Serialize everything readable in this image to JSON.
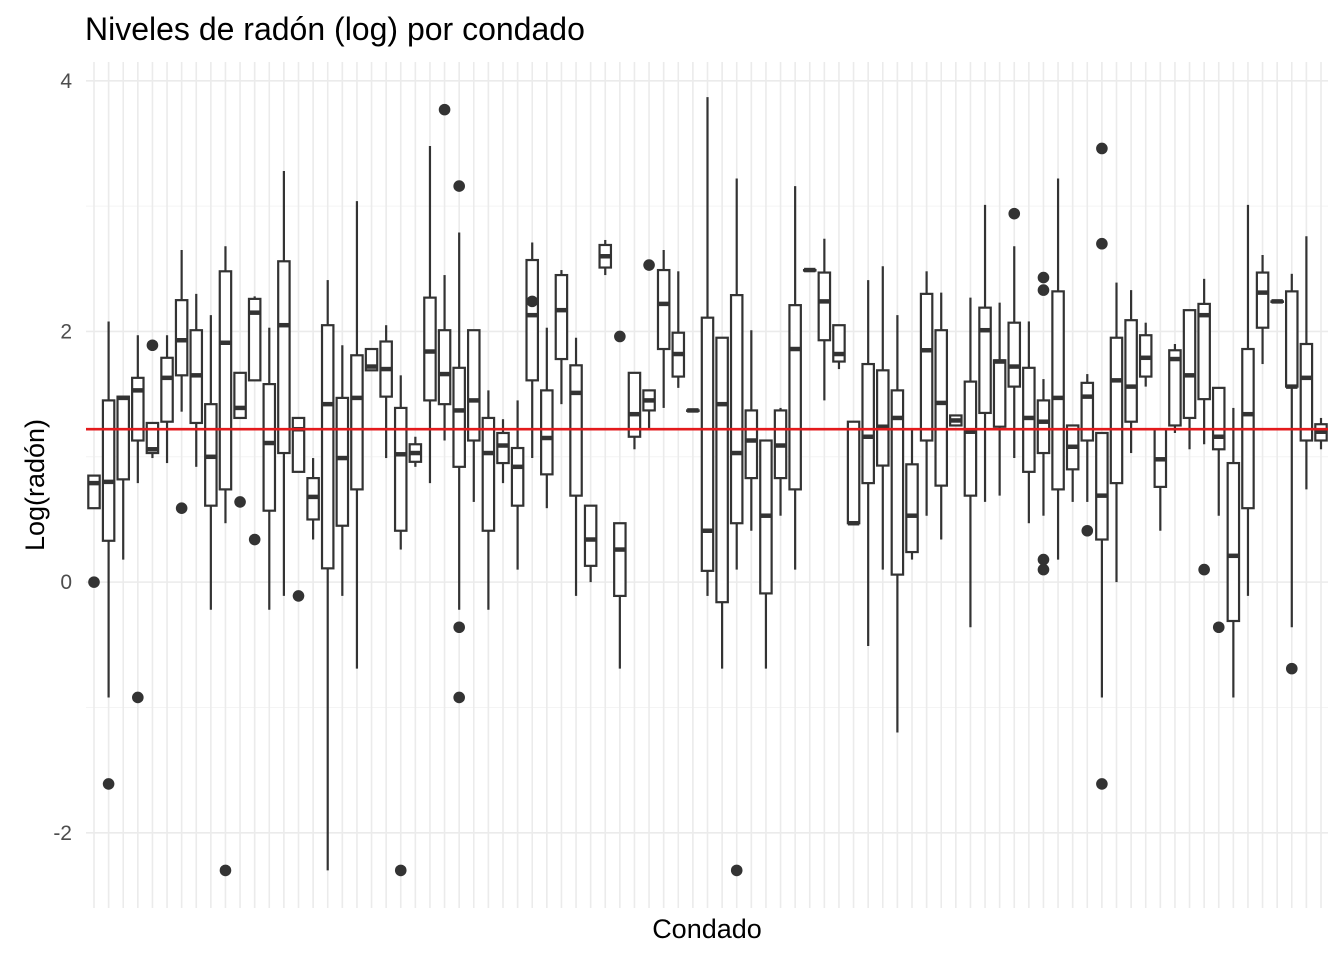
{
  "chart_data": {
    "type": "boxplot",
    "title": "Niveles de radón (log) por condado",
    "xlabel": "Condado",
    "ylabel": "Log(radón)",
    "ylim": [
      -2.6,
      4.15
    ],
    "yticks": [
      -2,
      0,
      2,
      4
    ],
    "grid": true,
    "reference_line": {
      "value": 1.22,
      "color": "#e31a1c"
    },
    "colors": {
      "box": "#333333",
      "grid_major": "#ebebeb",
      "grid_minor": "#f4f4f4",
      "reference": "#e31a1c"
    },
    "series": [
      {
        "q1": 0.59,
        "median": 0.79,
        "q3": 0.85,
        "lo": 0.59,
        "hi": 0.85,
        "out": [
          0.0
        ]
      },
      {
        "q1": 0.33,
        "median": 0.8,
        "q3": 1.45,
        "lo": -0.92,
        "hi": 2.08,
        "out": [
          -1.61
        ]
      },
      {
        "q1": 0.82,
        "median": 1.47,
        "q3": 1.48,
        "lo": 0.18,
        "hi": 1.48,
        "out": []
      },
      {
        "q1": 1.13,
        "median": 1.53,
        "q3": 1.63,
        "lo": 0.79,
        "hi": 1.97,
        "out": [
          -0.92
        ]
      },
      {
        "q1": 1.03,
        "median": 1.06,
        "q3": 1.27,
        "lo": 0.99,
        "hi": 1.27,
        "out": [
          1.89
        ]
      },
      {
        "q1": 1.28,
        "median": 1.63,
        "q3": 1.79,
        "lo": 0.95,
        "hi": 1.97,
        "out": []
      },
      {
        "q1": 1.65,
        "median": 1.93,
        "q3": 2.25,
        "lo": 1.36,
        "hi": 2.65,
        "out": [
          0.59
        ]
      },
      {
        "q1": 1.27,
        "median": 1.65,
        "q3": 2.01,
        "lo": 0.92,
        "hi": 2.3,
        "out": []
      },
      {
        "q1": 0.61,
        "median": 1.0,
        "q3": 1.42,
        "lo": -0.22,
        "hi": 2.13,
        "out": []
      },
      {
        "q1": 0.74,
        "median": 1.91,
        "q3": 2.48,
        "lo": 0.47,
        "hi": 2.68,
        "out": [
          -2.3
        ]
      },
      {
        "q1": 1.31,
        "median": 1.39,
        "q3": 1.67,
        "lo": 1.31,
        "hi": 1.67,
        "out": [
          0.64
        ]
      },
      {
        "q1": 1.61,
        "median": 2.15,
        "q3": 2.26,
        "lo": 1.61,
        "hi": 2.28,
        "out": [
          0.34
        ]
      },
      {
        "q1": 0.57,
        "median": 1.11,
        "q3": 1.58,
        "lo": -0.22,
        "hi": 2.03,
        "out": []
      },
      {
        "q1": 1.03,
        "median": 2.05,
        "q3": 2.56,
        "lo": -0.11,
        "hi": 3.28,
        "out": []
      },
      {
        "q1": 0.88,
        "median": 1.22,
        "q3": 1.31,
        "lo": 0.88,
        "hi": 1.31,
        "out": [
          -0.11
        ]
      },
      {
        "q1": 0.5,
        "median": 0.68,
        "q3": 0.83,
        "lo": 0.34,
        "hi": 0.99,
        "out": []
      },
      {
        "q1": 0.11,
        "median": 1.42,
        "q3": 2.05,
        "lo": -2.3,
        "hi": 2.41,
        "out": []
      },
      {
        "q1": 0.45,
        "median": 0.99,
        "q3": 1.47,
        "lo": -0.11,
        "hi": 1.89,
        "out": []
      },
      {
        "q1": 0.74,
        "median": 1.47,
        "q3": 1.81,
        "lo": -0.69,
        "hi": 3.04,
        "out": []
      },
      {
        "q1": 1.69,
        "median": 1.72,
        "q3": 1.86,
        "lo": 1.69,
        "hi": 1.86,
        "out": []
      },
      {
        "q1": 1.48,
        "median": 1.7,
        "q3": 1.92,
        "lo": 0.99,
        "hi": 2.05,
        "out": []
      },
      {
        "q1": 0.41,
        "median": 1.02,
        "q3": 1.39,
        "lo": 0.26,
        "hi": 1.65,
        "out": [
          -2.3
        ]
      },
      {
        "q1": 0.96,
        "median": 1.03,
        "q3": 1.1,
        "lo": 0.92,
        "hi": 1.16,
        "out": []
      },
      {
        "q1": 1.45,
        "median": 1.84,
        "q3": 2.27,
        "lo": 0.79,
        "hi": 3.48,
        "out": []
      },
      {
        "q1": 1.42,
        "median": 1.66,
        "q3": 2.01,
        "lo": 1.13,
        "hi": 2.45,
        "out": [
          3.77
        ]
      },
      {
        "q1": 0.92,
        "median": 1.37,
        "q3": 1.71,
        "lo": -0.22,
        "hi": 2.79,
        "out": [
          3.16,
          -0.36,
          -0.92
        ]
      },
      {
        "q1": 1.13,
        "median": 1.45,
        "q3": 2.01,
        "lo": 0.64,
        "hi": 2.01,
        "out": []
      },
      {
        "q1": 0.41,
        "median": 1.03,
        "q3": 1.31,
        "lo": -0.22,
        "hi": 1.53,
        "out": []
      },
      {
        "q1": 0.95,
        "median": 1.09,
        "q3": 1.19,
        "lo": 0.79,
        "hi": 1.3,
        "out": []
      },
      {
        "q1": 0.61,
        "median": 0.92,
        "q3": 1.07,
        "lo": 0.1,
        "hi": 1.45,
        "out": []
      },
      {
        "q1": 1.61,
        "median": 2.13,
        "q3": 2.57,
        "lo": 0.99,
        "hi": 2.71,
        "out": [
          2.24
        ]
      },
      {
        "q1": 0.86,
        "median": 1.15,
        "q3": 1.53,
        "lo": 0.59,
        "hi": 2.03,
        "out": []
      },
      {
        "q1": 1.78,
        "median": 2.17,
        "q3": 2.45,
        "lo": 1.42,
        "hi": 2.49,
        "out": []
      },
      {
        "q1": 0.69,
        "median": 1.51,
        "q3": 1.73,
        "lo": -0.11,
        "hi": 1.95,
        "out": []
      },
      {
        "q1": 0.13,
        "median": 0.34,
        "q3": 0.61,
        "lo": 0.0,
        "hi": 0.61,
        "out": []
      },
      {
        "q1": 2.51,
        "median": 2.6,
        "q3": 2.69,
        "lo": 2.45,
        "hi": 2.73,
        "out": []
      },
      {
        "q1": -0.11,
        "median": 0.26,
        "q3": 0.47,
        "lo": -0.69,
        "hi": 0.47,
        "out": [
          1.96
        ]
      },
      {
        "q1": 1.16,
        "median": 1.34,
        "q3": 1.67,
        "lo": 1.06,
        "hi": 1.67,
        "out": []
      },
      {
        "q1": 1.37,
        "median": 1.45,
        "q3": 1.53,
        "lo": 1.22,
        "hi": 1.53,
        "out": [
          2.53
        ]
      },
      {
        "q1": 1.86,
        "median": 2.22,
        "q3": 2.49,
        "lo": 1.39,
        "hi": 2.65,
        "out": []
      },
      {
        "q1": 1.64,
        "median": 1.82,
        "q3": 1.99,
        "lo": 1.55,
        "hi": 2.48,
        "out": []
      },
      {
        "q1": 1.37,
        "median": 1.37,
        "q3": 1.37,
        "lo": 1.37,
        "hi": 1.37,
        "out": []
      },
      {
        "q1": 0.09,
        "median": 0.41,
        "q3": 2.11,
        "lo": -0.11,
        "hi": 3.87,
        "out": []
      },
      {
        "q1": -0.16,
        "median": 1.42,
        "q3": 1.95,
        "lo": -0.69,
        "hi": 1.95,
        "out": []
      },
      {
        "q1": 0.47,
        "median": 1.03,
        "q3": 2.29,
        "lo": 0.1,
        "hi": 3.22,
        "out": [
          -2.3
        ]
      },
      {
        "q1": 0.83,
        "median": 1.13,
        "q3": 1.37,
        "lo": 0.41,
        "hi": 2.01,
        "out": []
      },
      {
        "q1": -0.09,
        "median": 0.53,
        "q3": 1.13,
        "lo": -0.69,
        "hi": 1.13,
        "out": []
      },
      {
        "q1": 0.83,
        "median": 1.09,
        "q3": 1.37,
        "lo": 0.53,
        "hi": 1.39,
        "out": []
      },
      {
        "q1": 0.74,
        "median": 1.86,
        "q3": 2.21,
        "lo": 0.1,
        "hi": 3.16,
        "out": []
      },
      {
        "q1": 2.49,
        "median": 2.49,
        "q3": 2.49,
        "lo": 2.49,
        "hi": 2.49,
        "out": []
      },
      {
        "q1": 1.93,
        "median": 2.24,
        "q3": 2.47,
        "lo": 1.45,
        "hi": 2.74,
        "out": []
      },
      {
        "q1": 1.76,
        "median": 1.82,
        "q3": 2.05,
        "lo": 1.7,
        "hi": 2.05,
        "out": []
      },
      {
        "q1": 0.47,
        "median": 0.47,
        "q3": 1.28,
        "lo": 0.47,
        "hi": 1.28,
        "out": []
      },
      {
        "q1": 0.79,
        "median": 1.16,
        "q3": 1.74,
        "lo": -0.51,
        "hi": 2.41,
        "out": []
      },
      {
        "q1": 0.93,
        "median": 1.24,
        "q3": 1.69,
        "lo": 0.1,
        "hi": 2.52,
        "out": []
      },
      {
        "q1": 0.06,
        "median": 1.31,
        "q3": 1.53,
        "lo": -1.2,
        "hi": 2.13,
        "out": []
      },
      {
        "q1": 0.24,
        "median": 0.53,
        "q3": 0.94,
        "lo": 0.18,
        "hi": 1.22,
        "out": []
      },
      {
        "q1": 1.13,
        "median": 1.85,
        "q3": 2.3,
        "lo": 0.53,
        "hi": 2.48,
        "out": []
      },
      {
        "q1": 0.77,
        "median": 1.43,
        "q3": 2.01,
        "lo": 0.34,
        "hi": 2.31,
        "out": []
      },
      {
        "q1": 1.25,
        "median": 1.29,
        "q3": 1.33,
        "lo": 1.25,
        "hi": 1.33,
        "out": []
      },
      {
        "q1": 0.69,
        "median": 1.2,
        "q3": 1.6,
        "lo": -0.36,
        "hi": 2.27,
        "out": []
      },
      {
        "q1": 1.35,
        "median": 2.01,
        "q3": 2.19,
        "lo": 0.64,
        "hi": 3.01,
        "out": []
      },
      {
        "q1": 1.24,
        "median": 1.76,
        "q3": 1.77,
        "lo": 0.69,
        "hi": 2.23,
        "out": []
      },
      {
        "q1": 1.56,
        "median": 1.72,
        "q3": 2.07,
        "lo": 0.99,
        "hi": 2.68,
        "out": [
          2.94
        ]
      },
      {
        "q1": 0.88,
        "median": 1.31,
        "q3": 1.71,
        "lo": 0.47,
        "hi": 2.08,
        "out": []
      },
      {
        "q1": 1.03,
        "median": 1.28,
        "q3": 1.45,
        "lo": 0.53,
        "hi": 1.62,
        "out": [
          2.43,
          2.33,
          0.18,
          0.1
        ]
      },
      {
        "q1": 0.74,
        "median": 1.47,
        "q3": 2.32,
        "lo": 0.18,
        "hi": 3.22,
        "out": []
      },
      {
        "q1": 0.9,
        "median": 1.08,
        "q3": 1.25,
        "lo": 0.64,
        "hi": 1.25,
        "out": []
      },
      {
        "q1": 1.13,
        "median": 1.48,
        "q3": 1.59,
        "lo": 0.64,
        "hi": 1.66,
        "out": [
          0.41
        ]
      },
      {
        "q1": 0.34,
        "median": 0.69,
        "q3": 1.19,
        "lo": -0.92,
        "hi": 1.19,
        "out": [
          3.46,
          2.7,
          -1.61
        ]
      },
      {
        "q1": 0.79,
        "median": 1.61,
        "q3": 1.95,
        "lo": 0.0,
        "hi": 2.39,
        "out": []
      },
      {
        "q1": 1.28,
        "median": 1.56,
        "q3": 2.09,
        "lo": 1.03,
        "hi": 2.33,
        "out": []
      },
      {
        "q1": 1.64,
        "median": 1.79,
        "q3": 1.97,
        "lo": 1.56,
        "hi": 2.07,
        "out": []
      },
      {
        "q1": 0.76,
        "median": 0.98,
        "q3": 1.22,
        "lo": 0.41,
        "hi": 1.22,
        "out": []
      },
      {
        "q1": 1.25,
        "median": 1.78,
        "q3": 1.85,
        "lo": 1.19,
        "hi": 1.9,
        "out": []
      },
      {
        "q1": 1.31,
        "median": 1.65,
        "q3": 2.17,
        "lo": 1.06,
        "hi": 2.17,
        "out": []
      },
      {
        "q1": 1.46,
        "median": 2.13,
        "q3": 2.22,
        "lo": 1.1,
        "hi": 2.42,
        "out": [
          0.1
        ]
      },
      {
        "q1": 1.06,
        "median": 1.16,
        "q3": 1.55,
        "lo": 0.53,
        "hi": 1.55,
        "out": [
          -0.36
        ]
      },
      {
        "q1": -0.31,
        "median": 0.21,
        "q3": 0.95,
        "lo": -0.92,
        "hi": 1.39,
        "out": []
      },
      {
        "q1": 0.59,
        "median": 1.34,
        "q3": 1.86,
        "lo": -0.11,
        "hi": 3.01,
        "out": []
      },
      {
        "q1": 2.03,
        "median": 2.31,
        "q3": 2.47,
        "lo": 1.74,
        "hi": 2.61,
        "out": []
      },
      {
        "q1": 2.24,
        "median": 2.24,
        "q3": 2.24,
        "lo": 2.24,
        "hi": 2.24,
        "out": []
      },
      {
        "q1": 1.56,
        "median": 1.56,
        "q3": 2.32,
        "lo": -0.36,
        "hi": 2.46,
        "out": [
          -0.69
        ]
      },
      {
        "q1": 1.13,
        "median": 1.63,
        "q3": 1.9,
        "lo": 0.74,
        "hi": 2.76,
        "out": []
      },
      {
        "q1": 1.13,
        "median": 1.2,
        "q3": 1.26,
        "lo": 1.06,
        "hi": 1.31,
        "out": []
      }
    ]
  }
}
